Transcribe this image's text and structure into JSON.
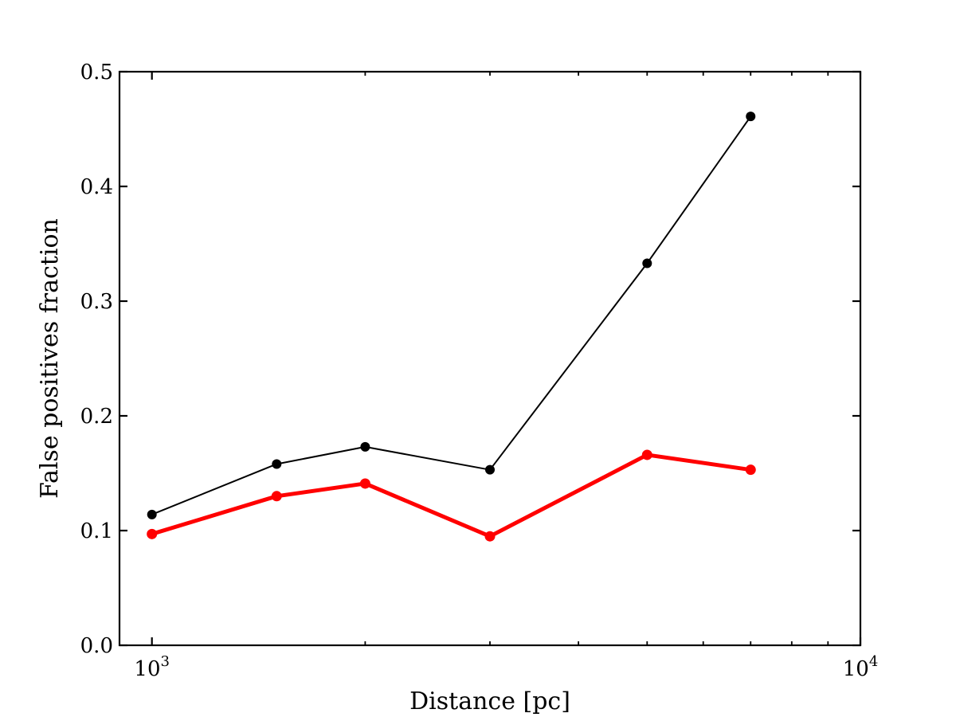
{
  "chart_data": {
    "type": "line",
    "title": "",
    "xlabel": "Distance [pc]",
    "ylabel": "False positives fraction",
    "x_scale": "log",
    "xlim": [
      900,
      10000
    ],
    "ylim": [
      0.0,
      0.5
    ],
    "x_ticks": [
      {
        "value": 1000,
        "base": "10",
        "exp": "3"
      },
      {
        "value": 10000,
        "base": "10",
        "exp": "4"
      }
    ],
    "y_ticks": [
      {
        "value": 0.0,
        "label": "0.0"
      },
      {
        "value": 0.1,
        "label": "0.1"
      },
      {
        "value": 0.2,
        "label": "0.2"
      },
      {
        "value": 0.3,
        "label": "0.3"
      },
      {
        "value": 0.4,
        "label": "0.4"
      },
      {
        "value": 0.5,
        "label": "0.5"
      }
    ],
    "grid": false,
    "legend": "none",
    "series": [
      {
        "color": "#000000",
        "line_width": "thin",
        "x": [
          1000,
          1500,
          2000,
          3000,
          5000,
          7000
        ],
        "y": [
          0.114,
          0.158,
          0.173,
          0.153,
          0.333,
          0.461
        ]
      },
      {
        "color": "#ff0000",
        "line_width": "thick",
        "x": [
          1000,
          1500,
          2000,
          3000,
          5000,
          7000
        ],
        "y": [
          0.097,
          0.13,
          0.141,
          0.095,
          0.166,
          0.153
        ]
      }
    ]
  }
}
